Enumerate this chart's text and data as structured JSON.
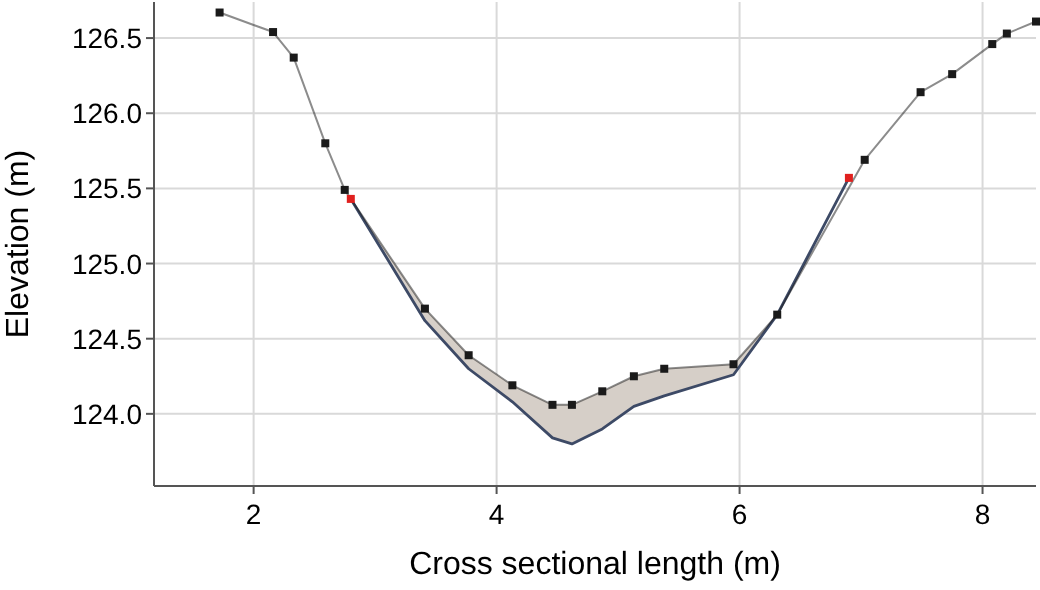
{
  "chart_data": {
    "type": "line",
    "xlabel": "Cross sectional length (m)",
    "ylabel": "Elevation (m)",
    "xlim": [
      1.18,
      8.44
    ],
    "ylim": [
      123.52,
      126.74
    ],
    "xticks": [
      2,
      4,
      6,
      8
    ],
    "yticks": [
      {
        "value": 124,
        "label": "124.0"
      },
      {
        "value": 124.5,
        "label": "124.5"
      },
      {
        "value": 125,
        "label": "125.0"
      },
      {
        "value": 125.5,
        "label": "125.5"
      },
      {
        "value": 126,
        "label": "126.0"
      },
      {
        "value": 126.5,
        "label": "126.5"
      }
    ],
    "grid": true,
    "marker": "square",
    "line_style": "solid",
    "series": [
      {
        "type": "line",
        "marker": "none",
        "color": "#3d4a66",
        "x": [
          2.8,
          3.41,
          3.77,
          4.13,
          4.46,
          4.62,
          4.87,
          5.13,
          5.38,
          5.95,
          6.31,
          6.9
        ],
        "values": [
          125.43,
          124.62,
          124.3,
          124.08,
          123.84,
          123.8,
          123.9,
          124.05,
          124.12,
          124.26,
          124.66,
          125.57
        ],
        "lower": [
          125.43,
          124.62,
          124.3,
          124.08,
          123.84,
          123.8,
          123.9,
          124.05,
          124.12,
          124.26,
          124.66,
          125.57
        ],
        "upper": [
          125.43,
          124.7,
          124.39,
          124.19,
          124.06,
          124.06,
          124.15,
          124.25,
          124.3,
          124.33,
          124.66,
          125.57
        ]
      },
      {
        "color": "#1a1a1a",
        "x": [
          1.72,
          2.16,
          2.33,
          2.59,
          2.75,
          3.41,
          3.77,
          4.13,
          4.46,
          4.62,
          4.87,
          5.13,
          5.38,
          5.95,
          6.31,
          7.03,
          7.49,
          7.75,
          8.08,
          8.2,
          8.44
        ],
        "values": [
          126.67,
          126.54,
          126.37,
          125.8,
          125.49,
          124.7,
          124.39,
          124.19,
          124.06,
          124.06,
          124.15,
          124.25,
          124.3,
          124.33,
          124.66,
          125.69,
          126.14,
          126.26,
          126.46,
          126.53,
          126.61
        ]
      },
      {
        "type": "scatter",
        "color": "#e0201e",
        "x": [
          2.8,
          6.9
        ],
        "values": [
          125.43,
          125.57
        ]
      }
    ]
  }
}
